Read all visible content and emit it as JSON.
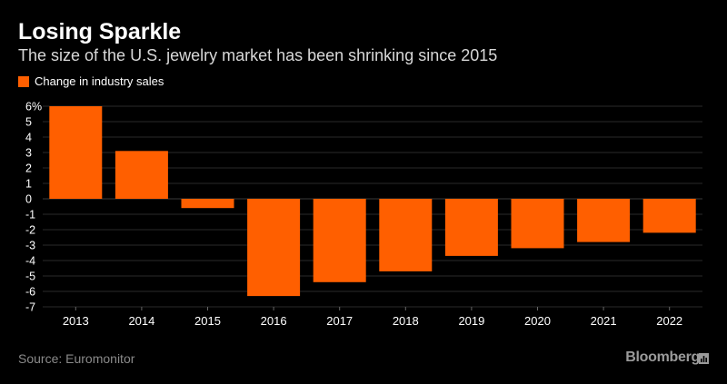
{
  "header": {
    "title": "Losing Sparkle",
    "subtitle": "The size of the U.S. jewelry market has been shrinking since 2015"
  },
  "footer": {
    "source": "Source: Euromonitor",
    "brand": "Bloomberg"
  },
  "colors": {
    "bar": "#ff5f00",
    "grid": "#2a2a2a",
    "background": "#000000"
  },
  "chart_data": {
    "type": "bar",
    "title": "Losing Sparkle",
    "subtitle": "The size of the U.S. jewelry market has been shrinking since 2015",
    "xlabel": "",
    "ylabel": "",
    "ylim": [
      -7,
      6
    ],
    "yticks": [
      6,
      5,
      4,
      3,
      2,
      1,
      0,
      -1,
      -2,
      -3,
      -4,
      -5,
      -6,
      -7
    ],
    "ytick_labels": [
      "6%",
      "5",
      "4",
      "3",
      "2",
      "1",
      "0",
      "-1",
      "-2",
      "-3",
      "-4",
      "-5",
      "-6",
      "-7"
    ],
    "grid": true,
    "legend": "top-left",
    "categories": [
      "2013",
      "2014",
      "2015",
      "2016",
      "2017",
      "2018",
      "2019",
      "2020",
      "2021",
      "2022"
    ],
    "series": [
      {
        "name": "Change in industry sales",
        "values": [
          6.0,
          3.1,
          -0.6,
          -6.3,
          -5.4,
          -4.7,
          -3.7,
          -3.2,
          -2.8,
          -2.2
        ]
      }
    ]
  }
}
